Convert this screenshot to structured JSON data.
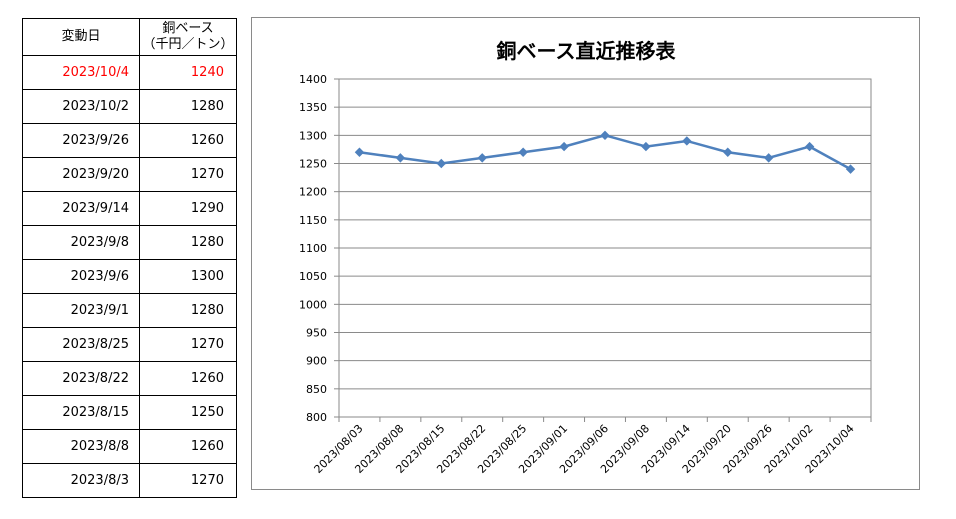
{
  "table": {
    "header": {
      "date": "変動日",
      "price_line1": "銅ベース",
      "price_line2": "（千円／トン）"
    },
    "highlight_color": "#ff0000",
    "rows": [
      {
        "date": "2023/10/4",
        "price": "1240",
        "highlight": true
      },
      {
        "date": "2023/10/2",
        "price": "1280"
      },
      {
        "date": "2023/9/26",
        "price": "1260"
      },
      {
        "date": "2023/9/20",
        "price": "1270"
      },
      {
        "date": "2023/9/14",
        "price": "1290"
      },
      {
        "date": "2023/9/8",
        "price": "1280"
      },
      {
        "date": "2023/9/6",
        "price": "1300"
      },
      {
        "date": "2023/9/1",
        "price": "1280"
      },
      {
        "date": "2023/8/25",
        "price": "1270"
      },
      {
        "date": "2023/8/22",
        "price": "1260"
      },
      {
        "date": "2023/8/15",
        "price": "1250"
      },
      {
        "date": "2023/8/8",
        "price": "1260"
      },
      {
        "date": "2023/8/3",
        "price": "1270"
      }
    ]
  },
  "chart_data": {
    "type": "line",
    "title": "銅ベース直近推移表",
    "xlabel": "",
    "ylabel": "",
    "categories": [
      "2023/08/03",
      "2023/08/08",
      "2023/08/15",
      "2023/08/22",
      "2023/08/25",
      "2023/09/01",
      "2023/09/06",
      "2023/09/08",
      "2023/09/14",
      "2023/09/20",
      "2023/09/26",
      "2023/10/02",
      "2023/10/04"
    ],
    "series": [
      {
        "values": [
          1270,
          1260,
          1250,
          1260,
          1270,
          1280,
          1300,
          1280,
          1290,
          1270,
          1260,
          1280,
          1240
        ],
        "color": "#4f81bd",
        "marker": "diamond"
      }
    ],
    "ylim": [
      800,
      1400
    ],
    "yticks": [
      800,
      850,
      900,
      950,
      1000,
      1050,
      1100,
      1150,
      1200,
      1250,
      1300,
      1350,
      1400
    ],
    "grid": true,
    "legend": "none"
  }
}
